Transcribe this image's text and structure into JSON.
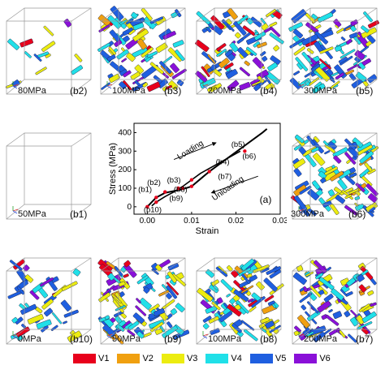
{
  "panels": [
    {
      "pressure": "80MPa",
      "id": "(b2)",
      "density": "low"
    },
    {
      "pressure": "100MPa",
      "id": "(b3)",
      "density": "high"
    },
    {
      "pressure": "200MPa",
      "id": "(b4)",
      "density": "high"
    },
    {
      "pressure": "300MPa",
      "id": "(b5)",
      "density": "high"
    },
    {
      "pressure": "50MPa",
      "id": "(b1)",
      "density": "none"
    },
    {
      "pressure": "300MPa",
      "id": "(b6)",
      "density": "high"
    },
    {
      "pressure": "0MPa",
      "id": "(b10)",
      "density": "medium"
    },
    {
      "pressure": "50MPa",
      "id": "(b9)",
      "density": "high"
    },
    {
      "pressure": "100MPa",
      "id": "(b8)",
      "density": "high"
    },
    {
      "pressure": "200MPa",
      "id": "(b7)",
      "density": "high"
    }
  ],
  "legend": [
    {
      "label": "V1",
      "color": "#e8001c"
    },
    {
      "label": "V2",
      "color": "#f0a010"
    },
    {
      "label": "V3",
      "color": "#ecec10"
    },
    {
      "label": "V4",
      "color": "#20e0e8"
    },
    {
      "label": "V5",
      "color": "#1f5fe0"
    },
    {
      "label": "V6",
      "color": "#8a10d8"
    }
  ],
  "chart_data": {
    "type": "line",
    "xlabel": "Strain",
    "ylabel": "Stress (MPa)",
    "xlim": [
      -0.003,
      0.03
    ],
    "ylim": [
      -40,
      450
    ],
    "xticks": [
      "0.00",
      "0.01",
      "0.02",
      "0.03"
    ],
    "yticks": [
      "0",
      "100",
      "200",
      "300",
      "400"
    ],
    "panel_label": "(a)",
    "series": [
      {
        "name": "Loading",
        "x": [
          0.0,
          0.002,
          0.004,
          0.006,
          0.008,
          0.01,
          0.012,
          0.014,
          0.016,
          0.018,
          0.02,
          0.022,
          0.024,
          0.026,
          0.027
        ],
        "y": [
          0,
          50,
          75,
          85,
          95,
          110,
          150,
          190,
          225,
          260,
          295,
          330,
          365,
          400,
          420
        ]
      },
      {
        "name": "Unloading",
        "x": [
          0.021,
          0.018,
          0.015,
          0.012,
          0.01,
          0.008,
          0.006,
          0.004,
          0.002,
          0.001
        ],
        "y": [
          300,
          260,
          220,
          180,
          145,
          110,
          80,
          55,
          25,
          5
        ]
      }
    ],
    "annotations": [
      {
        "text": "(b1)",
        "x": -0.0005,
        "y": 80
      },
      {
        "text": "(b2)",
        "x": 0.0015,
        "y": 118
      },
      {
        "text": "(b3)",
        "x": 0.006,
        "y": 130
      },
      {
        "text": "(b4)",
        "x": 0.017,
        "y": 228
      },
      {
        "text": "(b5)",
        "x": 0.0205,
        "y": 323
      },
      {
        "text": "(b6)",
        "x": 0.023,
        "y": 260
      },
      {
        "text": "(b7)",
        "x": 0.0175,
        "y": 150
      },
      {
        "text": "(b8)",
        "x": 0.0075,
        "y": 80
      },
      {
        "text": "(b9)",
        "x": 0.0065,
        "y": 32
      },
      {
        "text": "(b10)",
        "x": 0.0012,
        "y": -30
      }
    ],
    "arrow_labels": [
      {
        "text": "Loading"
      },
      {
        "text": "Unloading"
      }
    ],
    "markers": [
      {
        "x": 0.0,
        "y": 0
      },
      {
        "x": 0.002,
        "y": 50
      },
      {
        "x": 0.004,
        "y": 80
      },
      {
        "x": 0.008,
        "y": 100
      },
      {
        "x": 0.01,
        "y": 110
      },
      {
        "x": 0.014,
        "y": 190
      },
      {
        "x": 0.022,
        "y": 300
      },
      {
        "x": 0.01,
        "y": 145
      },
      {
        "x": 0.007,
        "y": 100
      },
      {
        "x": 0.002,
        "y": 25
      }
    ]
  }
}
